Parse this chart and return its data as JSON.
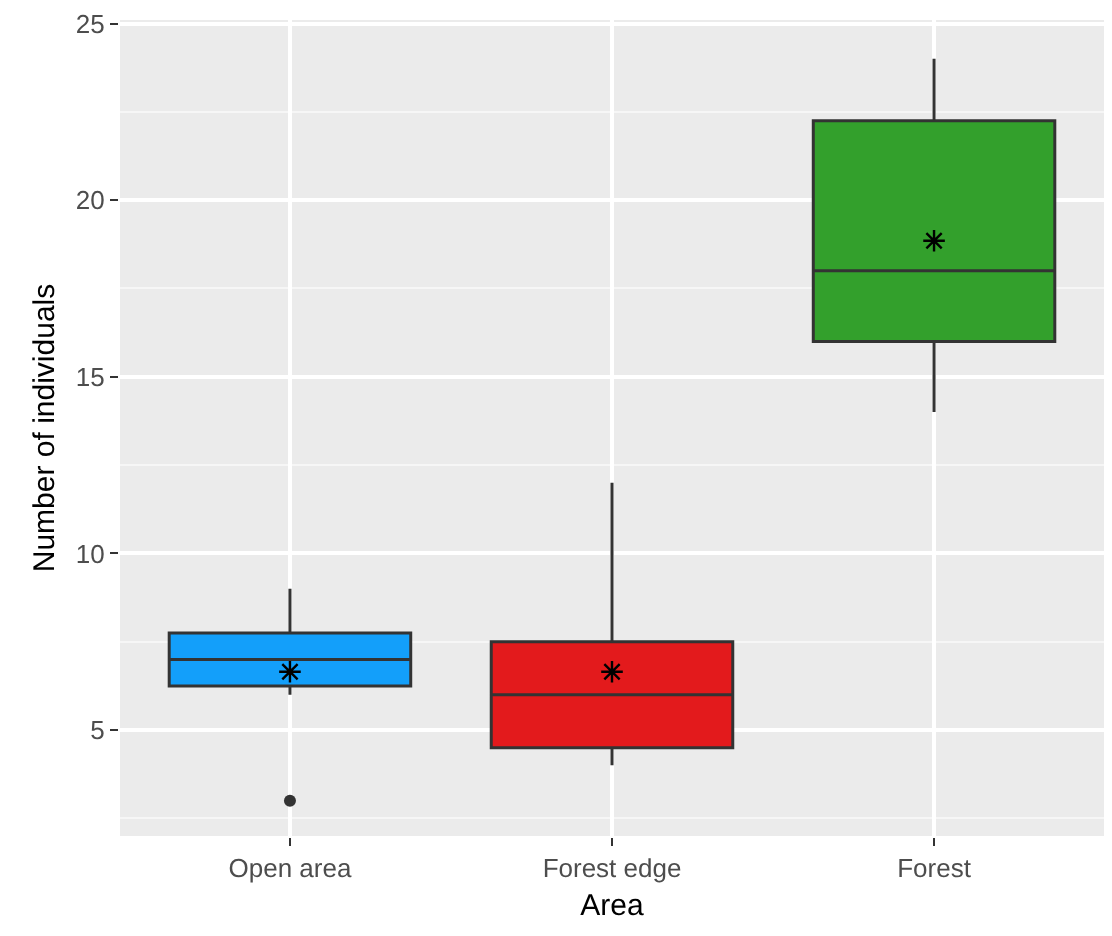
{
  "chart_data": {
    "type": "box",
    "xlabel": "Area",
    "ylabel": "Number of individuals",
    "categories": [
      "Open area",
      "Forest edge",
      "Forest"
    ],
    "colors": [
      "#139ffa",
      "#e31a1c",
      "#33a02c"
    ],
    "boxes": [
      {
        "low": 6,
        "q1": 6.25,
        "median": 7,
        "q3": 7.75,
        "high": 9,
        "mean": 6.65,
        "outliers": [
          3
        ]
      },
      {
        "low": 4,
        "q1": 4.5,
        "median": 6,
        "q3": 7.5,
        "high": 12,
        "mean": 6.65
      },
      {
        "low": 14,
        "q1": 16,
        "median": 18,
        "q3": 22.25,
        "high": 24,
        "mean": 18.85
      }
    ],
    "ylim": [
      2,
      25.1
    ],
    "yticks": [
      5,
      10,
      15,
      20,
      25
    ],
    "grid": true
  }
}
